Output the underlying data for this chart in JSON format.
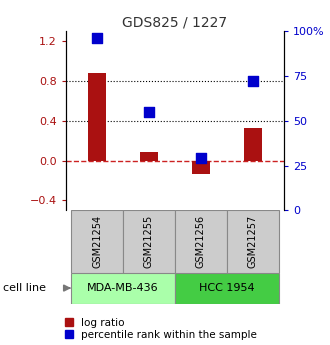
{
  "title": "GDS825 / 1227",
  "samples": [
    "GSM21254",
    "GSM21255",
    "GSM21256",
    "GSM21257"
  ],
  "log_ratios": [
    0.88,
    0.09,
    -0.13,
    0.33
  ],
  "percentile_ranks": [
    96,
    55,
    29,
    72
  ],
  "cell_lines": [
    {
      "label": "MDA-MB-436",
      "samples": [
        0,
        1
      ],
      "color": "#aaffaa"
    },
    {
      "label": "HCC 1954",
      "samples": [
        2,
        3
      ],
      "color": "#44cc44"
    }
  ],
  "bar_color": "#aa1111",
  "dot_color": "#0000cc",
  "left_ylim": [
    -0.5,
    1.3
  ],
  "right_ylim": [
    0,
    100
  ],
  "left_yticks": [
    -0.4,
    0.0,
    0.4,
    0.8,
    1.2
  ],
  "right_yticks": [
    0,
    25,
    50,
    75,
    100
  ],
  "right_yticklabels": [
    "0",
    "25",
    "50",
    "75",
    "100%"
  ],
  "hline_y": [
    0.4,
    0.8
  ],
  "hline_color": "black",
  "hline_style": "dotted",
  "zero_line_color": "#cc2222",
  "zero_line_style": "dashed",
  "bar_width": 0.35,
  "dot_size": 55,
  "legend_log_label": "log ratio",
  "legend_pct_label": "percentile rank within the sample",
  "cell_line_label": "cell line",
  "background_color": "#ffffff",
  "gsm_box_color": "#cccccc",
  "gsm_box_edge": "#888888"
}
